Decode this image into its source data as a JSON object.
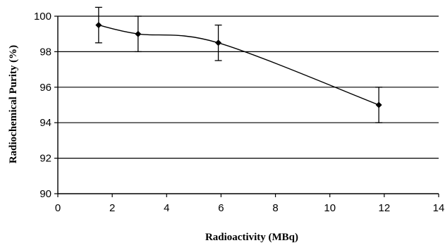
{
  "chart_data": {
    "type": "line",
    "title": "",
    "xlabel": "Radioactivity (MBq)",
    "ylabel": "Radiochemical Purity (%)",
    "xlim": [
      0,
      14
    ],
    "ylim": [
      90,
      100
    ],
    "x_ticks": [
      0,
      2,
      4,
      6,
      8,
      10,
      12,
      14
    ],
    "y_ticks": [
      90,
      92,
      94,
      96,
      98,
      100
    ],
    "x_tick_labels": [
      "0",
      "2",
      "4",
      "6",
      "8",
      "10",
      "12",
      "14"
    ],
    "y_tick_labels": [
      "90",
      "92",
      "94",
      "96",
      "98",
      "100"
    ],
    "grid": {
      "horizontal": true,
      "vertical": false
    },
    "legend": "none",
    "series": [
      {
        "x": [
          1.5,
          2.95,
          5.9,
          11.8
        ],
        "y": [
          99.5,
          99.0,
          98.5,
          95.0
        ],
        "error": [
          1.0,
          1.0,
          1.0,
          1.0
        ],
        "marker": "diamond",
        "smooth": true
      }
    ],
    "colors": {
      "line": "#000000",
      "grid": "#000000",
      "axis": "#000000"
    }
  }
}
